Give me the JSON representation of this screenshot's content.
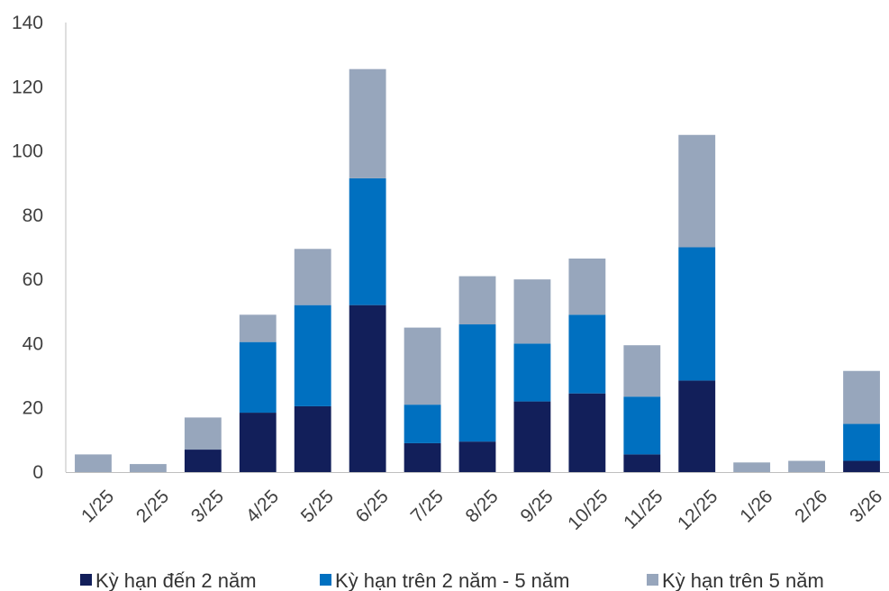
{
  "chart_data": {
    "type": "bar",
    "stacked": true,
    "categories": [
      "1/25",
      "2/25",
      "3/25",
      "4/25",
      "5/25",
      "6/25",
      "7/25",
      "8/25",
      "9/25",
      "10/25",
      "11/25",
      "12/25",
      "1/26",
      "2/26",
      "3/26"
    ],
    "series": [
      {
        "name": "Kỳ hạn đến 2 năm",
        "color": "#121f5a",
        "values": [
          0,
          0,
          7,
          18.5,
          20.5,
          52,
          9,
          9.5,
          22,
          24.5,
          5.5,
          28.5,
          0,
          0,
          3.5
        ]
      },
      {
        "name": "Kỳ hạn trên 2 năm - 5 năm",
        "color": "#0070c0",
        "values": [
          0,
          0,
          0,
          22,
          31.5,
          39.5,
          12,
          36.5,
          18,
          24.5,
          18,
          41.5,
          0,
          0,
          11.5
        ]
      },
      {
        "name": "Kỳ hạn trên 5 năm",
        "color": "#97a6bc",
        "values": [
          5.5,
          2.5,
          10,
          8.5,
          17.5,
          34,
          24,
          15,
          20,
          17.5,
          16,
          35,
          3,
          3.5,
          16.5
        ]
      }
    ],
    "ylim": [
      0,
      140
    ],
    "yticks": [
      0,
      20,
      40,
      60,
      80,
      100,
      120,
      140
    ],
    "title": "",
    "xlabel": "",
    "ylabel": "",
    "grid": false,
    "legend_position": "bottom"
  }
}
